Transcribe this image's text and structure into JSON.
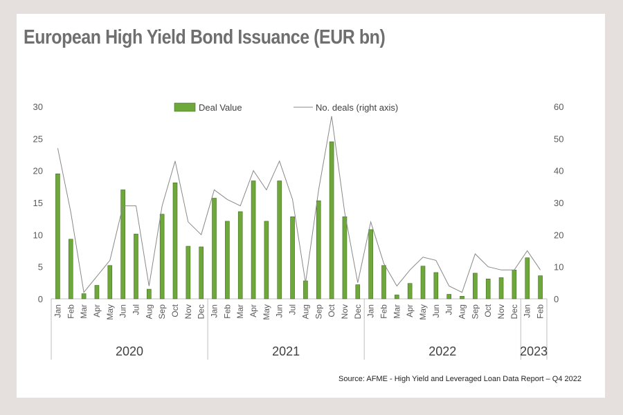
{
  "chart_data": {
    "type": "bar",
    "title": "European High Yield Bond Issuance (EUR bn)",
    "source": "Source: AFME - High Yield and Leveraged Loan Data Report – Q4 2022",
    "categories": [
      "Jan",
      "Feb",
      "Mar",
      "Apr",
      "May",
      "Jun",
      "Jul",
      "Aug",
      "Sep",
      "Oct",
      "Nov",
      "Dec",
      "Jan",
      "Feb",
      "Mar",
      "Apr",
      "May",
      "Jun",
      "Jul",
      "Aug",
      "Sep",
      "Oct",
      "Nov",
      "Dec",
      "Jan",
      "Feb",
      "Mar",
      "Apr",
      "May",
      "Jun",
      "Jul",
      "Aug",
      "Sep",
      "Oct",
      "Nov",
      "Dec",
      "Jan",
      "Feb"
    ],
    "years": [
      {
        "label": "2020",
        "count": 12
      },
      {
        "label": "2021",
        "count": 12
      },
      {
        "label": "2022",
        "count": 12
      },
      {
        "label": "2023",
        "count": 2
      }
    ],
    "series": [
      {
        "name": "Deal Value",
        "kind": "bar",
        "axis": "left",
        "color": "#6fa83a",
        "values": [
          19.5,
          9.3,
          0.8,
          2.1,
          5.2,
          17.0,
          10.1,
          1.5,
          13.2,
          18.1,
          8.2,
          8.1,
          15.7,
          12.1,
          13.6,
          18.4,
          12.1,
          18.4,
          12.8,
          2.8,
          15.3,
          24.5,
          12.8,
          2.2,
          10.8,
          5.2,
          0.6,
          2.4,
          5.1,
          4.1,
          0.7,
          0.4,
          4.0,
          3.1,
          3.3,
          4.5,
          6.4,
          3.6
        ]
      },
      {
        "name": "No. deals (right axis)",
        "kind": "line",
        "axis": "right",
        "color": "#888888",
        "values": [
          47,
          27,
          2,
          7,
          12,
          29,
          29,
          4,
          29,
          43,
          24,
          20,
          34,
          31,
          29,
          40,
          34,
          43,
          31,
          5,
          34,
          57,
          27,
          5,
          24,
          11,
          4,
          9,
          13,
          12,
          4,
          2,
          14,
          10,
          9,
          9,
          15,
          9
        ]
      }
    ],
    "y_left": {
      "min": 0,
      "max": 30,
      "ticks": [
        0,
        5,
        10,
        15,
        20,
        25,
        30
      ]
    },
    "y_right": {
      "min": 0,
      "max": 60,
      "ticks": [
        0,
        10,
        20,
        30,
        40,
        50,
        60
      ]
    },
    "legend": "top-center",
    "grid": false
  }
}
